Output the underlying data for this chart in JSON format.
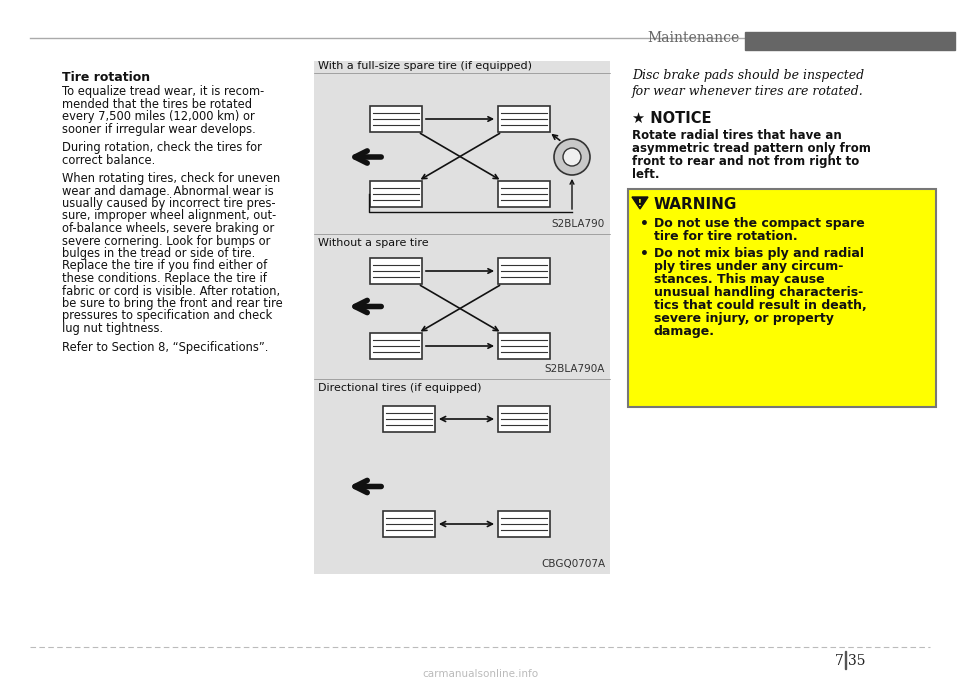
{
  "title_header": "Maintenance",
  "header_bar_color": "#555555",
  "header_text_color": "#666666",
  "background_color": "#ffffff",
  "section_title": "Tire rotation",
  "left_paragraphs": [
    "To equalize tread wear, it is recom-\nmended that the tires be rotated\nevery 7,500 miles (12,000 km) or\nsooner if irregular wear develops.",
    "During rotation, check the tires for\ncorrect balance.",
    "When rotating tires, check for uneven\nwear and damage. Abnormal wear is\nusually caused by incorrect tire pres-\nsure, improper wheel alignment, out-\nof-balance wheels, severe braking or\nsevere cornering. Look for bumps or\nbulges in the tread or side of tire.\nReplace the tire if you find either of\nthese conditions. Replace the tire if\nfabric or cord is visible. After rotation,\nbe sure to bring the front and rear tire\npressures to specification and check\nlug nut tightness.",
    "Refer to Section 8, “Specifications”."
  ],
  "diagram_label1": "With a full-size spare tire (if equipped)",
  "diagram_label2": "Without a spare tire",
  "diagram_label3": "Directional tires (if equipped)",
  "diagram_code1": "S2BLA790",
  "diagram_code2": "S2BLA790A",
  "diagram_code3": "CBGQ0707A",
  "diagram_bg": "#e0e0e0",
  "right_italic_text": "Disc brake pads should be inspected\nfor wear whenever tires are rotated.",
  "notice_symbol": "★ NOTICE",
  "notice_text": "Rotate radial tires that have an\nasymmetric tread pattern only from\nfront to rear and not from right to\nleft.",
  "warning_bg": "#ffff00",
  "warning_border": "#888888",
  "warning_title": "WARNING",
  "warning_bullets": [
    "Do not use the compact spare\ntire for tire rotation.",
    "Do not mix bias ply and radial\nply tires under any circum-\nstances. This may cause\nunusual handling characteris-\ntics that could result in death,\nsevere injury, or property\ndamage."
  ],
  "dashed_line_color": "#bbbbbb",
  "tire_fill": "#ffffff",
  "tire_edge": "#333333",
  "arrow_color": "#111111"
}
